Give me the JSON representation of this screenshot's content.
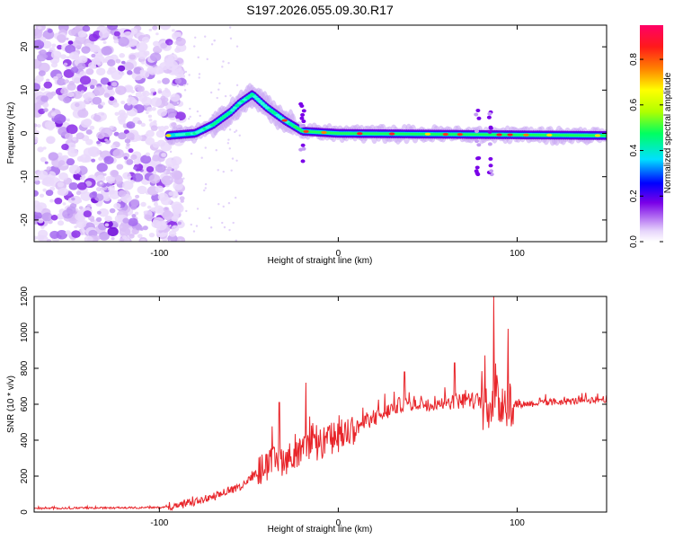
{
  "title": "S197.2026.055.09.30.R17",
  "chart_data": [
    {
      "type": "heatmap",
      "name": "spectrogram",
      "xlabel": "Height of straight line (km)",
      "ylabel": "Frequency (Hz)",
      "xlim": [
        -170,
        150
      ],
      "ylim": [
        -25,
        25
      ],
      "xticks": [
        -100,
        0,
        100
      ],
      "yticks": [
        -20,
        -10,
        0,
        10,
        20
      ],
      "colorbar": {
        "label": "Normalized spectral amplitude",
        "range": [
          0,
          0.95
        ],
        "ticks": [
          0.0,
          0.2,
          0.4,
          0.6,
          0.8
        ],
        "tick_labels": [
          "0.0",
          "0.2",
          "0.4",
          "0.6",
          "0.8"
        ]
      },
      "features": {
        "noise_region": [
          -170,
          -95
        ],
        "carrier_trace": [
          [
            -95,
            -0.5
          ],
          [
            -80,
            0
          ],
          [
            -70,
            2
          ],
          [
            -60,
            5
          ],
          [
            -55,
            7
          ],
          [
            -48,
            9
          ],
          [
            -40,
            6
          ],
          [
            -30,
            3
          ],
          [
            -20,
            0.5
          ],
          [
            0,
            0
          ],
          [
            150,
            -0.5
          ]
        ],
        "feature_at_km": [
          -20,
          78,
          85
        ]
      }
    },
    {
      "type": "line",
      "name": "snr",
      "xlabel": "Height of straight line (km)",
      "ylabel": "SNR (10 * v/v)",
      "xlim": [
        -170,
        150
      ],
      "ylim": [
        0,
        1200
      ],
      "xticks": [
        -100,
        0,
        100
      ],
      "yticks": [
        0,
        200,
        400,
        600,
        800,
        1000,
        1200
      ],
      "color": "#e8262b",
      "trend_points": [
        [
          -170,
          20
        ],
        [
          -100,
          25
        ],
        [
          -85,
          40
        ],
        [
          -70,
          80
        ],
        [
          -55,
          140
        ],
        [
          -40,
          260
        ],
        [
          -20,
          330
        ],
        [
          0,
          420
        ],
        [
          20,
          520
        ],
        [
          35,
          600
        ],
        [
          55,
          610
        ],
        [
          70,
          620
        ],
        [
          80,
          620
        ],
        [
          85,
          600
        ],
        [
          92,
          620
        ],
        [
          100,
          600
        ],
        [
          120,
          610
        ],
        [
          150,
          630
        ]
      ],
      "peaks": [
        [
          -33,
          610
        ],
        [
          -18,
          720
        ],
        [
          37,
          780
        ],
        [
          65,
          830
        ],
        [
          87,
          1200
        ],
        [
          95,
          1020
        ]
      ]
    }
  ]
}
